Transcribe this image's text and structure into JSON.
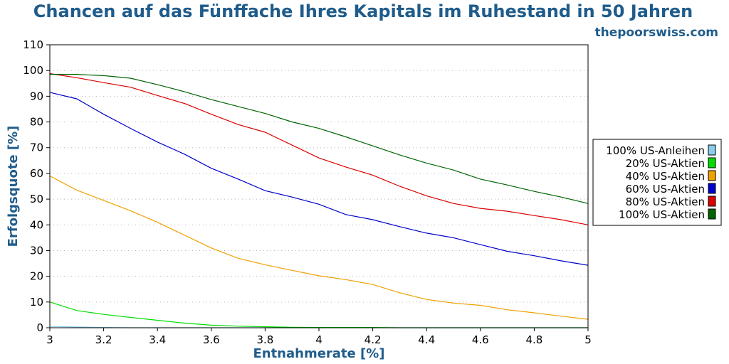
{
  "chart_data": {
    "type": "line",
    "title": "Chancen auf das Fünffache Ihres Kapitals im Ruhestand in 50 Jahren",
    "source": "thepoorswiss.com",
    "xlabel": "Entnahmerate [%]",
    "ylabel": "Erfolgsquote [%]",
    "xlim": [
      3,
      5
    ],
    "ylim": [
      0,
      110
    ],
    "xticks": [
      3,
      3.2,
      3.4,
      3.6,
      3.8,
      4,
      4.2,
      4.4,
      4.6,
      4.8,
      5
    ],
    "xtick_labels": [
      "3",
      "3.2",
      "3.4",
      "3.6",
      "3.8",
      "4",
      "4.2",
      "4.4",
      "4.6",
      "4.8",
      "5"
    ],
    "yticks": [
      0,
      10,
      20,
      30,
      40,
      50,
      60,
      70,
      80,
      90,
      100,
      110
    ],
    "ytick_labels": [
      "0",
      "10",
      "20",
      "30",
      "40",
      "50",
      "60",
      "70",
      "80",
      "90",
      "100",
      "110"
    ],
    "grid": true,
    "legend_position": "right",
    "x": [
      3.0,
      3.1,
      3.2,
      3.3,
      3.4,
      3.5,
      3.6,
      3.7,
      3.8,
      3.9,
      4.0,
      4.1,
      4.2,
      4.3,
      4.4,
      4.5,
      4.6,
      4.7,
      4.8,
      4.9,
      5.0
    ],
    "series": [
      {
        "name": "100% US-Anleihen",
        "color": "#87ceeb",
        "values": [
          0.5,
          0.3,
          0.1,
          0,
          0,
          0,
          0,
          0,
          0,
          0,
          0,
          0,
          0,
          0,
          0,
          0,
          0,
          0,
          0,
          0,
          0
        ]
      },
      {
        "name": "20% US-Aktien",
        "color": "#00dd00",
        "values": [
          10,
          6.7,
          5.2,
          4.0,
          2.9,
          1.8,
          1.0,
          0.6,
          0.4,
          0.2,
          0.1,
          0.1,
          0.1,
          0,
          0,
          0,
          0,
          0,
          0,
          0,
          0
        ]
      },
      {
        "name": "40% US-Aktien",
        "color": "#f0a000",
        "values": [
          59,
          53.5,
          49.5,
          45.5,
          41,
          36,
          31,
          27,
          24.5,
          22.3,
          20.2,
          18.7,
          16.8,
          13.6,
          11,
          9.6,
          8.7,
          7.0,
          5.8,
          4.5,
          3.3
        ]
      },
      {
        "name": "60% US-Aktien",
        "color": "#0000cc",
        "values": [
          91.5,
          89,
          83,
          77.5,
          72.2,
          67.5,
          62,
          57.8,
          53.3,
          50.8,
          48,
          44,
          42,
          39.3,
          36.8,
          35,
          32.3,
          29.7,
          28,
          26,
          24.3
        ]
      },
      {
        "name": "80% US-Aktien",
        "color": "#dd0000",
        "values": [
          98.8,
          97.2,
          95.3,
          93.5,
          90.3,
          87.2,
          83,
          79,
          76,
          71,
          66,
          62.5,
          59.3,
          55,
          51.3,
          48.3,
          46.4,
          45.3,
          43.6,
          42,
          40
        ]
      },
      {
        "name": "100% US-Aktien",
        "color": "#006400",
        "values": [
          98.5,
          98.5,
          98,
          97,
          94.5,
          91.8,
          88.7,
          86,
          83.3,
          80,
          77.5,
          74.2,
          70.7,
          67.2,
          64,
          61.3,
          57.8,
          55.5,
          53,
          50.8,
          48.3
        ]
      }
    ]
  }
}
